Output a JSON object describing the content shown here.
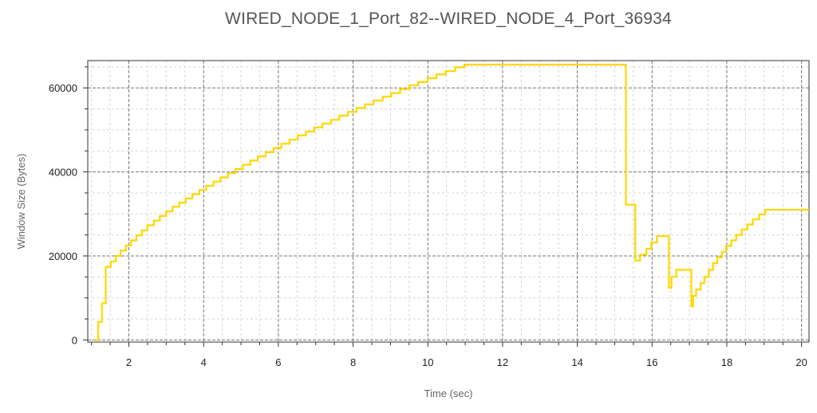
{
  "chart_data": {
    "type": "line",
    "title": "WIRED_NODE_1_Port_82--WIRED_NODE_4_Port_36934",
    "xlabel": "Time (sec)",
    "ylabel": "Window Size (Bytes)",
    "xlim": [
      0.9,
      20.2
    ],
    "ylim": [
      -500,
      66500
    ],
    "x_ticks": [
      2,
      4,
      6,
      8,
      10,
      12,
      14,
      16,
      18,
      20
    ],
    "y_ticks": [
      0,
      20000,
      40000,
      60000
    ],
    "grid": true,
    "line_color": "#FFD700",
    "series": [
      {
        "step": true,
        "x": [
          1.08,
          1.18,
          1.28,
          1.38,
          1.52,
          1.65,
          1.78,
          1.92,
          2.06,
          2.2,
          2.35,
          2.5,
          2.67,
          2.83,
          3.0,
          3.17,
          3.35,
          3.52,
          3.7,
          3.89,
          4.07,
          4.26,
          4.45,
          4.65,
          4.85,
          5.05,
          5.25,
          5.45,
          5.66,
          5.87,
          6.08,
          6.3,
          6.52,
          6.74,
          6.96,
          7.18,
          7.41,
          7.63,
          7.86,
          8.09,
          8.32,
          8.55,
          8.79,
          9.02,
          9.26,
          9.5,
          9.74,
          9.99,
          10.23,
          10.48,
          10.73,
          10.98,
          11.23,
          11.49,
          11.75,
          12.0,
          12.27,
          12.53,
          12.8,
          13.07,
          13.25,
          15.25,
          15.3,
          15.52,
          15.55,
          15.68,
          15.85,
          15.98,
          16.13,
          16.28,
          16.45,
          16.52,
          16.65,
          16.8,
          17.05,
          17.1,
          17.18,
          17.3,
          17.4,
          17.52,
          17.63,
          17.75,
          17.87,
          17.98,
          18.12,
          18.25,
          18.4,
          18.55,
          18.7,
          18.87,
          19.03,
          19.2,
          19.38,
          19.55,
          19.75,
          19.93,
          20.2
        ],
        "y": [
          0,
          4300,
          8700,
          17400,
          18700,
          20000,
          21300,
          22500,
          23700,
          24900,
          26100,
          27300,
          28400,
          29500,
          30600,
          31700,
          32700,
          33700,
          34700,
          35700,
          36700,
          37700,
          38700,
          39700,
          40700,
          41700,
          42700,
          43700,
          44700,
          45700,
          46700,
          47700,
          48700,
          49600,
          50600,
          51500,
          52400,
          53400,
          54300,
          55200,
          56100,
          57000,
          57900,
          58800,
          59700,
          60600,
          61400,
          62300,
          63200,
          64000,
          64900,
          65535,
          65535,
          65535,
          65535,
          65535,
          65535,
          65535,
          65535,
          65535,
          65535,
          65535,
          32200,
          32200,
          18900,
          20300,
          21700,
          23200,
          24700,
          24700,
          12400,
          15000,
          16700,
          16700,
          8000,
          10500,
          12000,
          13500,
          15000,
          16700,
          18300,
          19700,
          21000,
          22400,
          23700,
          25000,
          26300,
          27500,
          28700,
          29900,
          31000,
          31000,
          31000,
          31000,
          31000,
          31000,
          31000
        ]
      }
    ]
  }
}
